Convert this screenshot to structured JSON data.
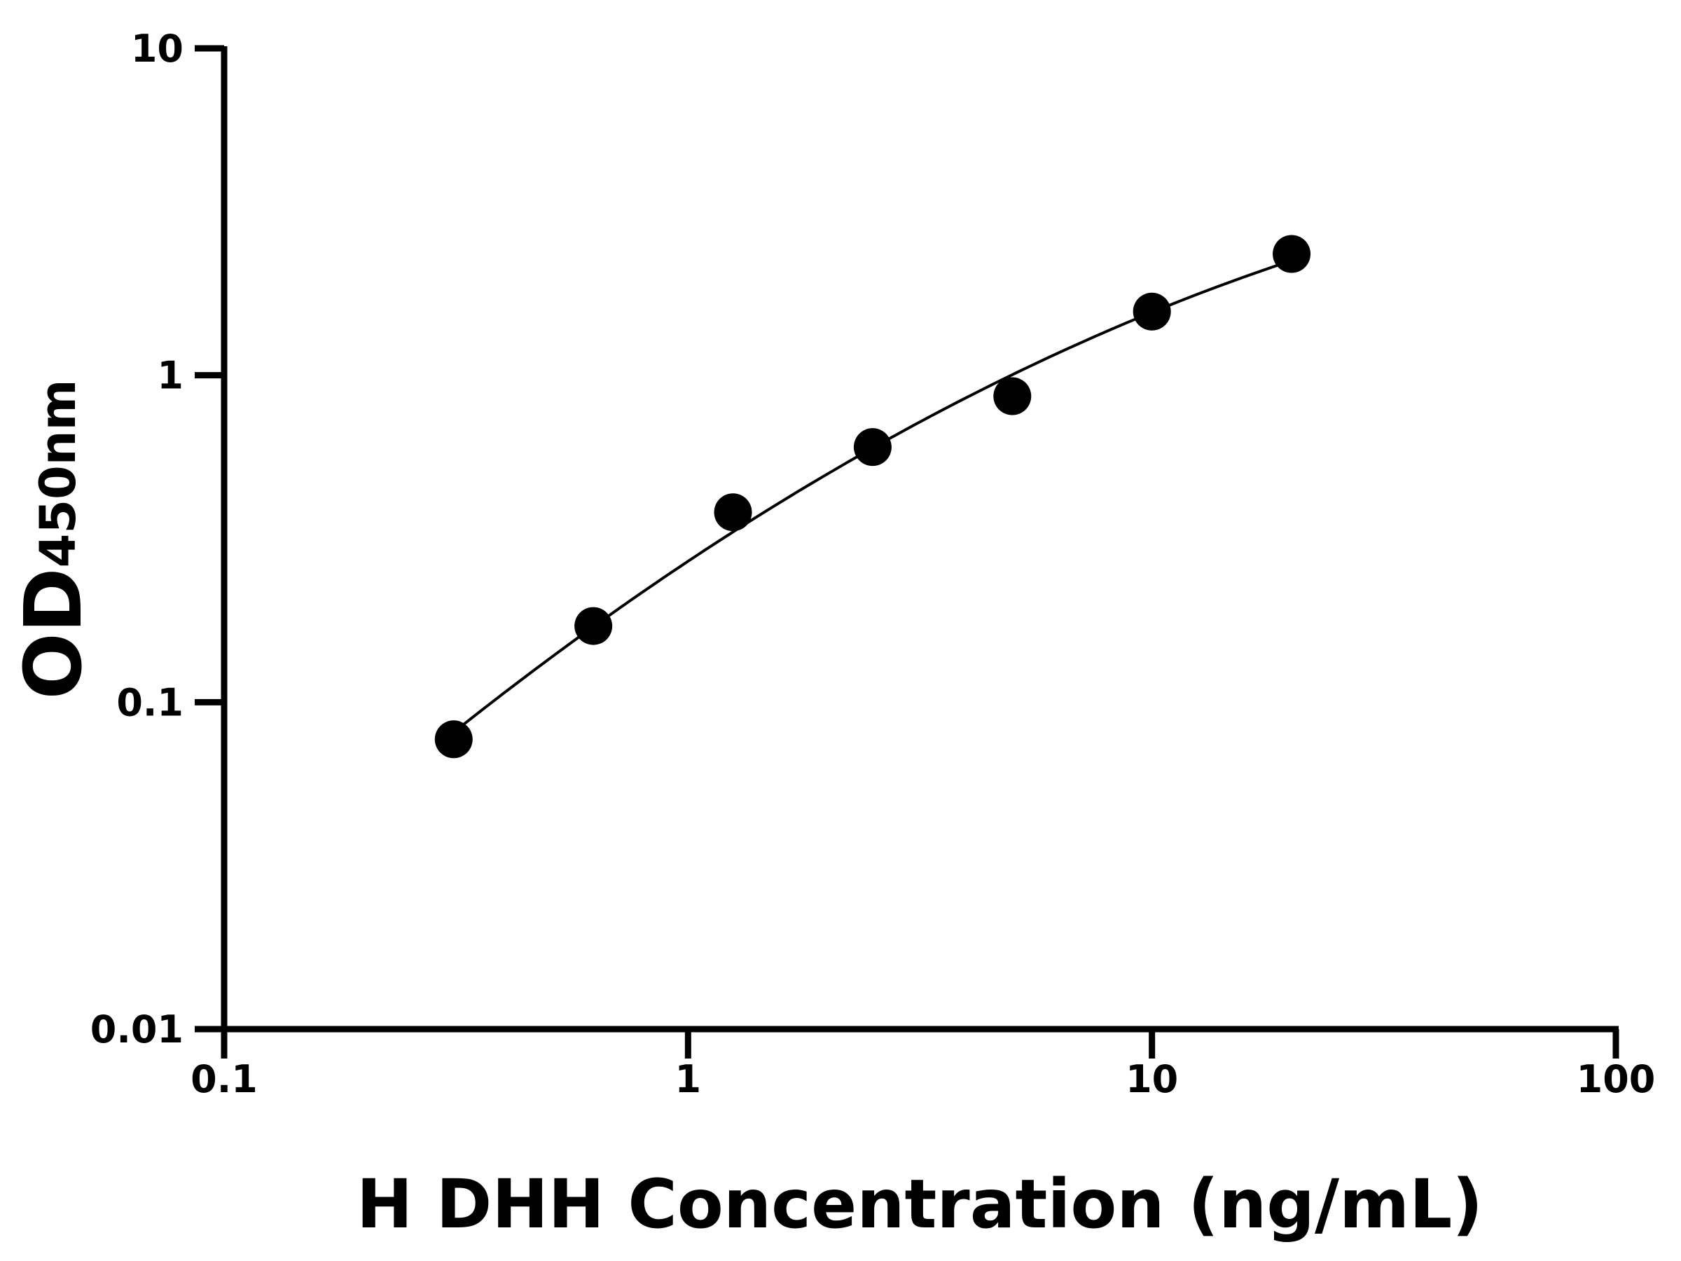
{
  "chart_data": {
    "type": "scatter",
    "title": "",
    "xlabel": "H DHH Concentration (ng/mL)",
    "ylabel": "OD",
    "ylabel_subscript": "450nm",
    "xscale": "log",
    "yscale": "log",
    "xlim": [
      0.1,
      100
    ],
    "ylim": [
      0.01,
      10
    ],
    "xticks": [
      "0.1",
      "1",
      "10",
      "100"
    ],
    "yticks": [
      "0.01",
      "0.1",
      "1",
      "10"
    ],
    "grid": false,
    "fit_curve": true,
    "colors": {
      "points": "#000000",
      "curve": "#000000"
    },
    "x": [
      0.3125,
      0.625,
      1.25,
      2.5,
      5,
      10,
      20
    ],
    "y": [
      0.077,
      0.171,
      0.381,
      0.603,
      0.863,
      1.566,
      2.35
    ]
  }
}
